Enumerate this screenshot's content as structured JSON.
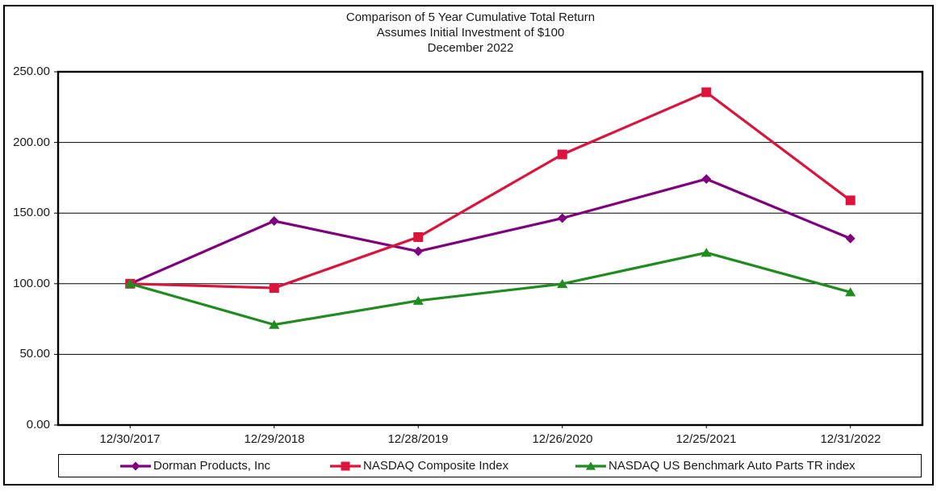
{
  "chart_data": {
    "type": "line",
    "title": "Comparison of 5 Year Cumulative Total Return",
    "subtitle": "Assumes Initial Investment of $100",
    "period": "December 2022",
    "categories": [
      "12/30/2017",
      "12/29/2018",
      "12/28/2019",
      "12/26/2020",
      "12/25/2021",
      "12/31/2022"
    ],
    "series": [
      {
        "name": "Dorman Products, Inc",
        "color": "#800080",
        "marker": "diamond",
        "values": [
          100.0,
          144.4,
          122.9,
          146.4,
          174.1,
          132.0
        ]
      },
      {
        "name": "NASDAQ Composite Index",
        "color": "#DC143C",
        "marker": "square",
        "values": [
          100.0,
          97.0,
          133.0,
          191.5,
          235.5,
          159.0
        ]
      },
      {
        "name": "NASDAQ US Benchmark Auto Parts TR index",
        "color": "#1E8C1E",
        "marker": "triangle",
        "values": [
          100.0,
          71.0,
          88.0,
          99.9,
          122.0,
          94.0
        ]
      }
    ],
    "yticks": [
      0,
      50,
      100,
      150,
      200,
      250
    ],
    "ytick_labels": [
      "0.00",
      "50.00",
      "100.00",
      "150.00",
      "200.00",
      "250.00"
    ],
    "ylim": [
      0,
      250
    ],
    "grid": true,
    "legend_position": "bottom",
    "axis_color": "#000000"
  }
}
